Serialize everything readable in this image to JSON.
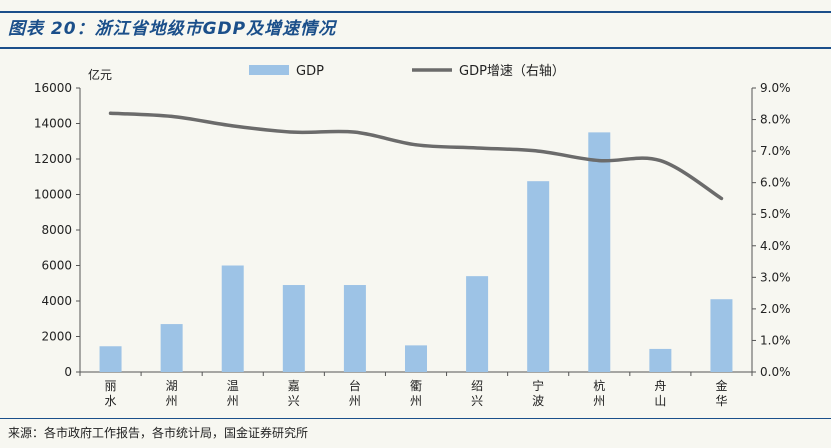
{
  "figure_title": "图表 20：浙江省地级市GDP及增速情况",
  "source": "来源：各市政府工作报告，各市统计局，国金证券研究所",
  "colors": {
    "title": "#1b4f8a",
    "bar": "#9dc3e6",
    "line": "#6b6b6b",
    "axis": "#555555"
  },
  "chart_data": {
    "type": "bar",
    "left_unit": "亿元",
    "categories": [
      "丽水",
      "湖州",
      "温州",
      "嘉兴",
      "台州",
      "衢州",
      "绍兴",
      "宁波",
      "杭州",
      "舟山",
      "金华"
    ],
    "series": [
      {
        "name": "GDP",
        "type": "bar",
        "axis": "left",
        "values": [
          1450,
          2700,
          6000,
          4900,
          4900,
          1500,
          5400,
          10750,
          13500,
          1300,
          4100
        ]
      },
      {
        "name": "GDP增速（右轴）",
        "type": "line",
        "axis": "right",
        "values": [
          8.2,
          8.1,
          7.8,
          7.6,
          7.6,
          7.2,
          7.1,
          7.0,
          6.7,
          6.7,
          5.5
        ]
      }
    ],
    "left_axis": {
      "min": 0,
      "max": 16000,
      "ticks": [
        "0",
        "2000",
        "4000",
        "6000",
        "8000",
        "10000",
        "12000",
        "14000",
        "16000"
      ]
    },
    "right_axis": {
      "min": 0,
      "max": 9,
      "ticks": [
        "0.0%",
        "1.0%",
        "2.0%",
        "3.0%",
        "4.0%",
        "5.0%",
        "6.0%",
        "7.0%",
        "8.0%",
        "9.0%"
      ]
    },
    "legend_position": "top-center",
    "grid": false
  }
}
